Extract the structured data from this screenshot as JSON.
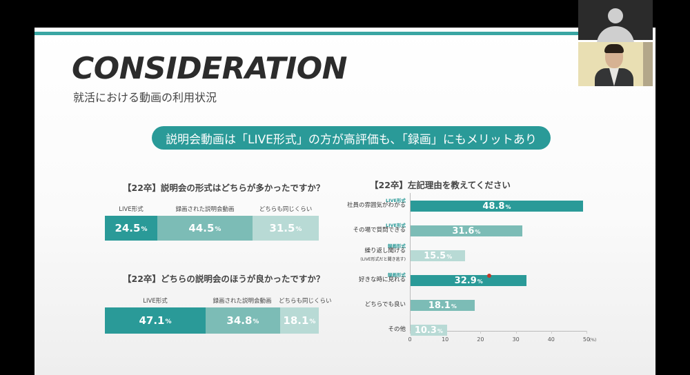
{
  "slide": {
    "title": "CONSIDERATION",
    "subtitle": "就活における動画の利用状況",
    "banner": "説明会動画は「LIVE形式」の方が高評価も、「録画」にもメリットあり"
  },
  "colors": {
    "dark_teal": "#2a9a98",
    "mid_teal": "#7cbcb6",
    "light_teal": "#b8dad5",
    "accent_bar": "#3aa6a3"
  },
  "pct_symbol": "%",
  "q1": {
    "title": "【22卒】説明会の形式はどちらが多かったですか？",
    "segments": [
      {
        "label": "LIVE形式",
        "value": "24.5",
        "share": 24.5
      },
      {
        "label": "録画された説明会動画",
        "value": "44.5",
        "share": 44.5
      },
      {
        "label": "どちらも同じくらい",
        "value": "31.5",
        "share": 31.5
      }
    ]
  },
  "q2": {
    "title": "【22卒】どちらの説明会のほうが良かったですか？",
    "segments": [
      {
        "label": "LIVE形式",
        "value": "47.1",
        "share": 47.1
      },
      {
        "label": "録画された説明会動画",
        "value": "34.8",
        "share": 34.8
      },
      {
        "label": "どちらも同じくらい",
        "value": "18.1",
        "share": 18.1
      }
    ]
  },
  "chart_data": {
    "type": "bar",
    "title": "【22卒】左記理由を教えてください",
    "orientation": "horizontal",
    "categories": [
      "社員の雰囲気がわかる",
      "その場で質問できる",
      "繰り返し聞ける",
      "好きな時に見れる",
      "どちらでも良い",
      "その他"
    ],
    "category_tags": [
      "LIVE形式",
      "LIVE形式",
      "録画形式",
      "録画形式",
      "",
      ""
    ],
    "category_notes": [
      "",
      "",
      "(LIVE形式だと聞き逃す)",
      "",
      "",
      ""
    ],
    "values": [
      48.8,
      31.6,
      15.5,
      32.9,
      18.1,
      10.3
    ],
    "value_labels": [
      "48.8",
      "31.6",
      "15.5",
      "32.9",
      "18.1",
      "10.3"
    ],
    "xlim": [
      0,
      50
    ],
    "xticks": [
      "0",
      "10",
      "20",
      "30",
      "40",
      "50"
    ],
    "unit": "(%)"
  }
}
